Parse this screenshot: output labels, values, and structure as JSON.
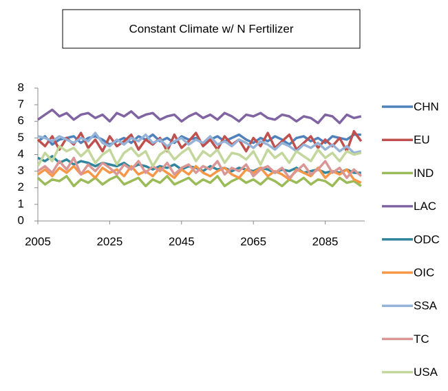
{
  "chart_data": {
    "type": "line",
    "title": "Constant Climate w/ N Fertilizer",
    "x": [
      2005,
      2007,
      2009,
      2011,
      2013,
      2015,
      2017,
      2019,
      2021,
      2023,
      2025,
      2027,
      2029,
      2031,
      2033,
      2035,
      2037,
      2039,
      2041,
      2043,
      2045,
      2047,
      2049,
      2051,
      2053,
      2055,
      2057,
      2059,
      2061,
      2063,
      2065,
      2067,
      2069,
      2071,
      2073,
      2075,
      2077,
      2079,
      2081,
      2083,
      2085,
      2087,
      2089,
      2091,
      2093,
      2095
    ],
    "xlim": [
      2005,
      2096
    ],
    "xticks": [
      2005,
      2025,
      2045,
      2065,
      2085
    ],
    "ylim": [
      0,
      8
    ],
    "yticks": [
      0,
      1,
      2,
      3,
      4,
      5,
      6,
      7,
      8
    ],
    "grid": false,
    "legend": "right",
    "series": [
      {
        "name": "CHN",
        "color": "#4f81bd",
        "values": [
          4.8,
          5.1,
          4.6,
          4.9,
          5.0,
          5.1,
          4.7,
          5.0,
          5.1,
          4.9,
          4.6,
          4.8,
          5.0,
          4.7,
          5.1,
          4.9,
          5.2,
          4.8,
          5.0,
          4.7,
          5.1,
          4.9,
          5.0,
          4.6,
          4.9,
          5.1,
          4.8,
          5.0,
          5.2,
          4.9,
          4.7,
          5.0,
          4.8,
          5.1,
          4.9,
          4.6,
          5.0,
          5.1,
          4.8,
          5.0,
          4.7,
          5.1,
          5.0,
          4.9,
          5.2,
          5.2
        ]
      },
      {
        "name": "EU",
        "color": "#c0504d",
        "values": [
          4.9,
          4.5,
          5.1,
          4.3,
          5.0,
          4.6,
          5.3,
          4.4,
          4.9,
          4.2,
          5.1,
          4.5,
          4.8,
          5.2,
          4.3,
          4.9,
          4.6,
          5.0,
          4.2,
          5.2,
          4.4,
          4.8,
          5.3,
          4.5,
          4.9,
          4.3,
          5.1,
          4.6,
          4.9,
          4.2,
          5.0,
          4.5,
          5.3,
          4.4,
          4.8,
          5.2,
          4.3,
          4.7,
          5.1,
          4.4,
          4.9,
          4.5,
          5.0,
          4.2,
          5.4,
          4.8
        ]
      },
      {
        "name": "IND",
        "color": "#9bbb59",
        "values": [
          2.6,
          2.2,
          2.5,
          2.4,
          2.7,
          2.1,
          2.5,
          2.3,
          2.6,
          2.2,
          2.5,
          2.7,
          2.2,
          2.4,
          2.6,
          2.1,
          2.5,
          2.3,
          2.7,
          2.2,
          2.4,
          2.6,
          2.2,
          2.5,
          2.3,
          2.7,
          2.1,
          2.4,
          2.6,
          2.3,
          2.5,
          2.2,
          2.6,
          2.4,
          2.1,
          2.5,
          2.3,
          2.6,
          2.2,
          2.5,
          2.4,
          2.1,
          2.6,
          2.3,
          2.4,
          2.1
        ]
      },
      {
        "name": "LAC",
        "color": "#8064a2",
        "values": [
          6.1,
          6.4,
          6.7,
          6.3,
          6.5,
          6.1,
          6.4,
          6.5,
          6.2,
          6.4,
          6.0,
          6.5,
          6.3,
          6.6,
          6.2,
          6.4,
          6.5,
          6.1,
          6.3,
          6.4,
          6.0,
          6.3,
          6.5,
          6.2,
          6.4,
          6.1,
          6.5,
          6.3,
          6.0,
          6.4,
          6.3,
          6.5,
          6.2,
          6.1,
          6.4,
          6.3,
          6.0,
          6.3,
          6.2,
          5.9,
          6.4,
          6.3,
          5.9,
          6.4,
          6.2,
          6.3
        ]
      },
      {
        "name": "ODC",
        "color": "#31859c",
        "values": [
          3.8,
          3.6,
          3.9,
          3.5,
          3.7,
          3.4,
          3.6,
          3.5,
          3.3,
          3.5,
          3.4,
          3.3,
          3.5,
          3.2,
          3.4,
          3.3,
          3.1,
          3.3,
          3.2,
          3.4,
          3.1,
          3.3,
          3.2,
          3.0,
          3.3,
          3.1,
          3.2,
          3.0,
          3.2,
          3.1,
          3.0,
          3.2,
          3.1,
          2.9,
          3.1,
          3.0,
          3.2,
          2.9,
          3.0,
          3.1,
          2.9,
          3.0,
          2.9,
          3.1,
          2.9,
          2.9
        ]
      },
      {
        "name": "OIC",
        "color": "#f79646",
        "values": [
          2.8,
          3.1,
          2.7,
          3.2,
          2.9,
          3.3,
          2.8,
          3.0,
          2.6,
          3.2,
          2.9,
          3.1,
          2.7,
          3.3,
          2.8,
          3.0,
          2.7,
          3.2,
          2.9,
          2.6,
          3.1,
          2.8,
          3.3,
          2.9,
          2.7,
          3.0,
          3.2,
          2.8,
          2.6,
          3.1,
          2.9,
          3.2,
          2.7,
          3.0,
          2.8,
          2.5,
          3.1,
          2.9,
          2.7,
          3.2,
          2.6,
          3.0,
          2.8,
          3.1,
          2.5,
          2.3
        ]
      },
      {
        "name": "SSA",
        "color": "#95b3d7",
        "values": [
          5.1,
          5.0,
          4.8,
          5.1,
          4.9,
          4.7,
          5.0,
          4.8,
          5.3,
          4.7,
          4.5,
          4.9,
          4.6,
          5.0,
          4.8,
          5.2,
          4.7,
          4.9,
          4.5,
          4.8,
          5.0,
          4.6,
          4.9,
          4.7,
          5.1,
          4.6,
          4.8,
          4.5,
          4.9,
          4.7,
          4.4,
          4.8,
          4.6,
          4.3,
          4.7,
          4.5,
          4.2,
          4.6,
          4.4,
          4.7,
          4.3,
          4.6,
          4.2,
          4.5,
          4.1,
          4.2
        ]
      },
      {
        "name": "TC",
        "color": "#d99694",
        "values": [
          3.0,
          3.3,
          2.9,
          3.6,
          3.1,
          3.8,
          2.8,
          3.4,
          3.0,
          3.5,
          3.2,
          2.8,
          3.4,
          3.1,
          3.6,
          2.9,
          3.3,
          3.0,
          3.5,
          2.8,
          3.2,
          3.4,
          2.9,
          3.3,
          3.1,
          3.6,
          2.8,
          3.2,
          3.0,
          3.4,
          2.7,
          3.1,
          3.3,
          2.9,
          3.2,
          2.6,
          3.0,
          3.4,
          2.8,
          3.1,
          3.6,
          2.9,
          3.2,
          2.6,
          3.1,
          2.7
        ]
      },
      {
        "name": "USA",
        "color": "#c3d69b",
        "values": [
          3.3,
          4.1,
          3.6,
          4.5,
          4.2,
          4.4,
          3.9,
          4.3,
          3.5,
          4.0,
          4.3,
          3.4,
          4.1,
          4.4,
          3.9,
          4.2,
          3.3,
          4.0,
          4.3,
          3.7,
          4.1,
          4.4,
          3.6,
          4.2,
          3.9,
          4.3,
          3.5,
          4.1,
          4.0,
          3.7,
          4.2,
          3.4,
          4.3,
          3.8,
          4.1,
          3.5,
          4.2,
          3.9,
          3.6,
          4.3,
          3.8,
          4.1,
          3.6,
          4.2,
          4.0,
          4.1
        ]
      }
    ]
  }
}
